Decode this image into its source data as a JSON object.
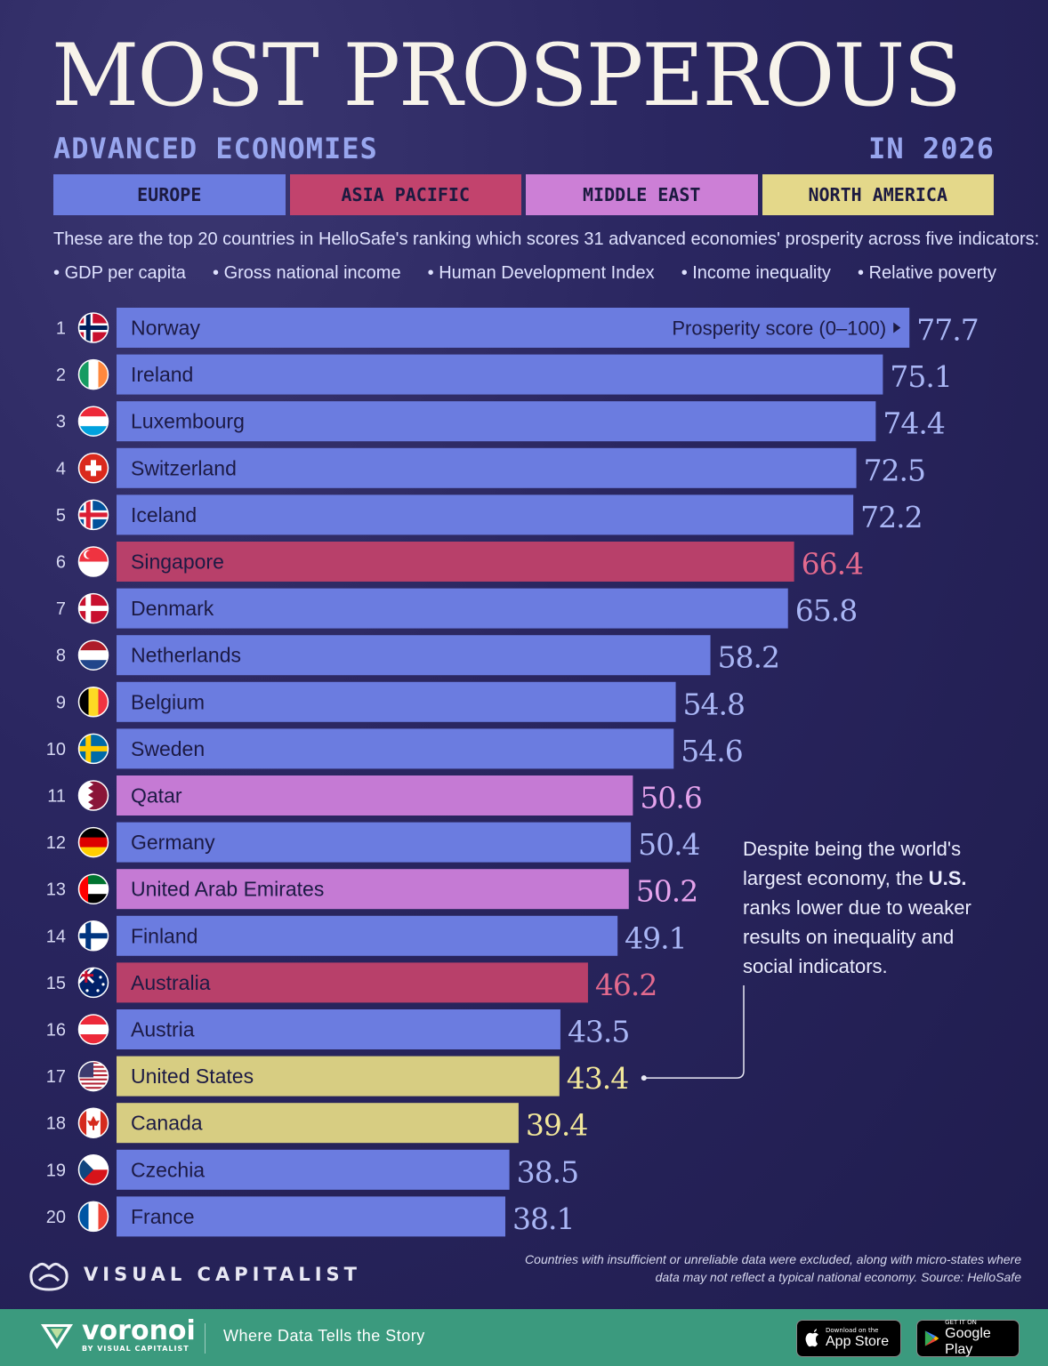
{
  "header": {
    "title": "MOST PROSPEROUS",
    "subtitle": "ADVANCED ECONOMIES",
    "year": "IN 2026"
  },
  "legend": [
    {
      "label": "EUROPE",
      "color": "#6b7ce0"
    },
    {
      "label": "ASIA PACIFIC",
      "color": "#c2436d"
    },
    {
      "label": "MIDDLE EAST",
      "color": "#cc7fd6"
    },
    {
      "label": "NORTH AMERICA",
      "color": "#e4d88a"
    }
  ],
  "intro": "These are the top 20 countries in HelloSafe's ranking which scores 31 advanced economies' prosperity across five indicators:",
  "indicators": [
    "GDP per capita",
    "Gross national income",
    "Human Development Index",
    "Income inequality",
    "Relative poverty"
  ],
  "chart_data": {
    "type": "bar",
    "orientation": "horizontal",
    "value_label": "Prosperity score (0–100)",
    "xlim": [
      0,
      100
    ],
    "region_colors": {
      "Europe": {
        "bar": "#6b7ce0",
        "text": "#a9b6f5"
      },
      "Asia Pacific": {
        "bar": "#b8406a",
        "text": "#e36a8e"
      },
      "Middle East": {
        "bar": "#c57ad4",
        "text": "#e5a3ec"
      },
      "North America": {
        "bar": "#d7cd82",
        "text": "#f2e79a"
      }
    },
    "rows": [
      {
        "rank": "1",
        "country": "Norway",
        "value": 77.7,
        "region": "Europe",
        "flag": "nordic-red"
      },
      {
        "rank": "2",
        "country": "Ireland",
        "value": 75.1,
        "region": "Europe",
        "flag": "ireland"
      },
      {
        "rank": "3",
        "country": "Luxembourg",
        "value": 74.4,
        "region": "Europe",
        "flag": "luxembourg"
      },
      {
        "rank": "4",
        "country": "Switzerland",
        "value": 72.5,
        "region": "Europe",
        "flag": "switzerland"
      },
      {
        "rank": "5",
        "country": "Iceland",
        "value": 72.2,
        "region": "Europe",
        "flag": "nordic-blue"
      },
      {
        "rank": "6",
        "country": "Singapore",
        "value": 66.4,
        "region": "Asia Pacific",
        "flag": "singapore"
      },
      {
        "rank": "7",
        "country": "Denmark",
        "value": 65.8,
        "region": "Europe",
        "flag": "denmark"
      },
      {
        "rank": "8",
        "country": "Netherlands",
        "value": 58.2,
        "region": "Europe",
        "flag": "netherlands"
      },
      {
        "rank": "9",
        "country": "Belgium",
        "value": 54.8,
        "region": "Europe",
        "flag": "belgium"
      },
      {
        "rank": "10",
        "country": "Sweden",
        "value": 54.6,
        "region": "Europe",
        "flag": "sweden"
      },
      {
        "rank": "11",
        "country": "Qatar",
        "value": 50.6,
        "region": "Middle East",
        "flag": "qatar"
      },
      {
        "rank": "12",
        "country": "Germany",
        "value": 50.4,
        "region": "Europe",
        "flag": "germany"
      },
      {
        "rank": "13",
        "country": "United Arab Emirates",
        "value": 50.2,
        "region": "Middle East",
        "flag": "uae"
      },
      {
        "rank": "14",
        "country": "Finland",
        "value": 49.1,
        "region": "Europe",
        "flag": "finland"
      },
      {
        "rank": "15",
        "country": "Australia",
        "value": 46.2,
        "region": "Asia Pacific",
        "flag": "australia"
      },
      {
        "rank": "16",
        "country": "Austria",
        "value": 43.5,
        "region": "Europe",
        "flag": "austria"
      },
      {
        "rank": "17",
        "country": "United States",
        "value": 43.4,
        "region": "North America",
        "flag": "usa"
      },
      {
        "rank": "18",
        "country": "Canada",
        "value": 39.4,
        "region": "North America",
        "flag": "canada"
      },
      {
        "rank": "19",
        "country": "Czechia",
        "value": 38.5,
        "region": "Europe",
        "flag": "czechia"
      },
      {
        "rank": "20",
        "country": "France",
        "value": 38.1,
        "region": "Europe",
        "flag": "france"
      }
    ]
  },
  "note": {
    "before": "Despite being the world's largest economy, the ",
    "bold": "U.S.",
    "after": " ranks lower due to weaker results on inequality and social indicators."
  },
  "footnote": "Countries with insufficient or unreliable data were excluded, along with micro-states where data may not reflect a typical national economy. Source: HelloSafe",
  "branding": {
    "vc": "VISUAL CAPITALIST",
    "voronoi": "voronoi",
    "voronoi_sub": "BY VISUAL CAPITALIST",
    "tagline": "Where Data Tells the Story",
    "appstore_small": "Download on the",
    "appstore_big": "App Store",
    "googleplay_small": "GET IT ON",
    "googleplay_big": "Google Play"
  }
}
